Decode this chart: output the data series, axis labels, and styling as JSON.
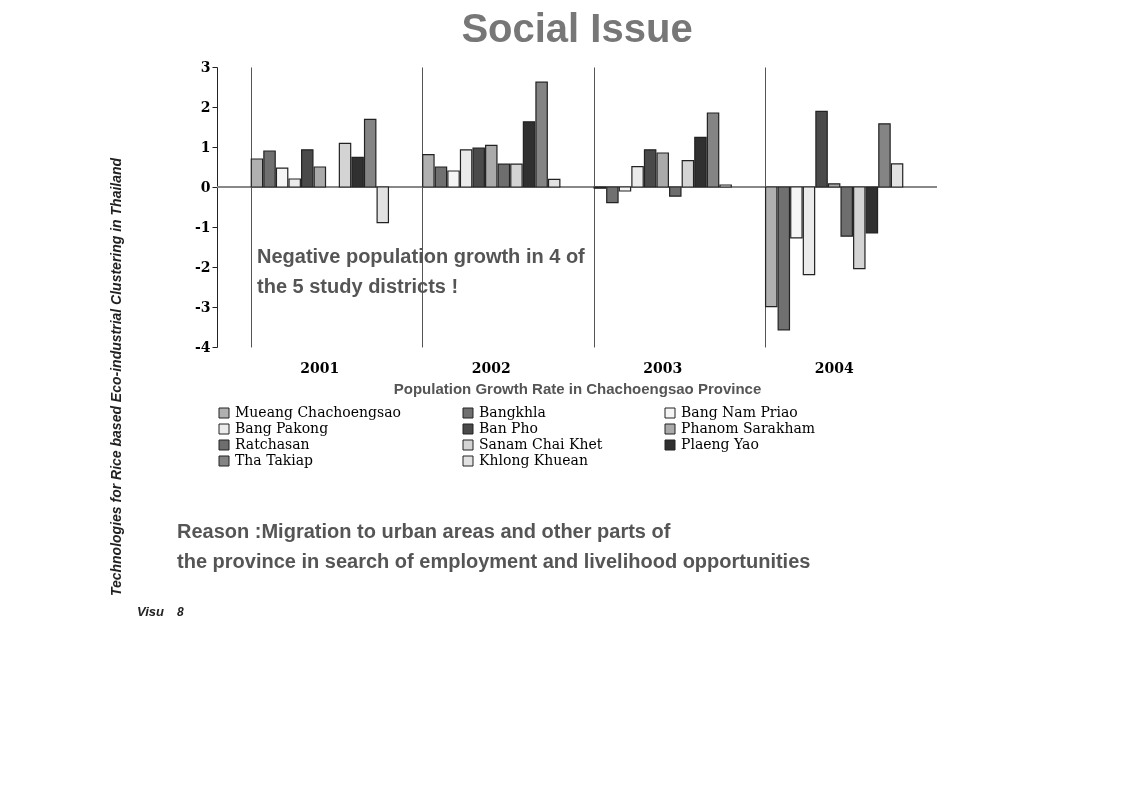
{
  "chart_data": {
    "type": "bar",
    "title": "Social Issue",
    "xlabel": "Population Growth Rate in Chachoengsao Province",
    "categories": [
      "2001",
      "2002",
      "2003",
      "2004"
    ],
    "series": [
      {
        "name": "Mueang Chachoengsao",
        "color": "#b0b0b0",
        "values": [
          0.7,
          0.81,
          -0.03,
          -2.99
        ]
      },
      {
        "name": "Bangkhla",
        "color": "#707070",
        "values": [
          0.9,
          0.5,
          -0.39,
          -3.57
        ]
      },
      {
        "name": "Bang Nam Priao",
        "color": "#f5f5f5",
        "values": [
          0.47,
          0.4,
          -0.1,
          -1.27
        ]
      },
      {
        "name": "Bang Pakong",
        "color": "#ebebeb",
        "values": [
          0.2,
          0.93,
          0.51,
          -2.19
        ]
      },
      {
        "name": "Ban Pho",
        "color": "#4a4a4a",
        "values": [
          0.93,
          0.97,
          0.93,
          1.89
        ]
      },
      {
        "name": "Phanom Sarakham",
        "color": "#aaaaaa",
        "values": [
          0.5,
          1.04,
          0.85,
          0.08
        ]
      },
      {
        "name": "Ratchasan",
        "color": "#6e6e6e",
        "values": [
          null,
          0.57,
          -0.23,
          -1.23
        ]
      },
      {
        "name": "Sanam Chai Khet",
        "color": "#d4d4d4",
        "values": [
          1.09,
          0.57,
          0.66,
          -2.04
        ]
      },
      {
        "name": "Plaeng Yao",
        "color": "#303030",
        "values": [
          0.74,
          1.63,
          1.24,
          -1.15
        ]
      },
      {
        "name": "Tha Takiap",
        "color": "#848484",
        "values": [
          1.69,
          2.62,
          1.85,
          1.58
        ]
      },
      {
        "name": "Khlong Khuean",
        "color": "#e2e2e2",
        "values": [
          -0.89,
          0.19,
          0.05,
          0.58
        ]
      }
    ],
    "ref_lines": [
      {
        "axis": "y",
        "value": 0,
        "color": "#888888"
      }
    ],
    "ylim": [
      -4,
      3
    ],
    "yticks": [
      -4,
      -3,
      -2,
      -1,
      0,
      1,
      2,
      3
    ],
    "grid": "x",
    "legend": "bottom",
    "annotations": [
      "Negative population growth in 4 of the 5 study districts !",
      "Reason :Migration to urban areas and other parts of the province in search of employment and livelihood opportunities",
      "Technologies for Rice based Eco-industrial Clustering in Thailand",
      "Visu",
      "8"
    ]
  }
}
